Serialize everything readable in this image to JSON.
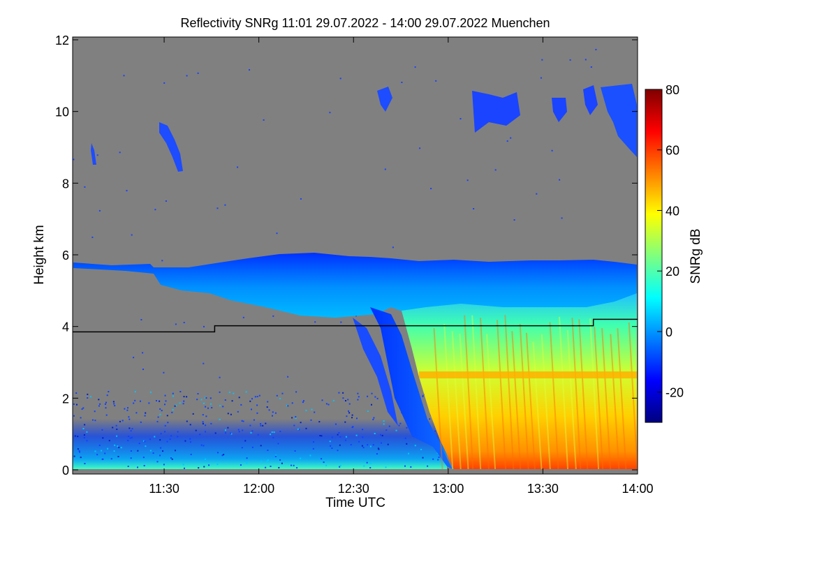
{
  "chart_data": {
    "type": "heatmap",
    "title": "Reflectivity SNRg   11:01 29.07.2022 - 14:00 29.07.2022 Muenchen",
    "xlabel": "Time UTC",
    "ylabel": "Height km",
    "x_ticks": [
      "11:30",
      "12:00",
      "12:30",
      "13:00",
      "13:30",
      "14:00"
    ],
    "y_ticks": [
      "0",
      "2",
      "4",
      "6",
      "8",
      "10",
      "12"
    ],
    "x_start": "11:01",
    "x_end": "14:00",
    "ylim": [
      0,
      12
    ],
    "colorbar": {
      "label": "SNRg dB",
      "ticks": [
        "80",
        "60",
        "40",
        "20",
        "0",
        "-20"
      ],
      "range": [
        -30,
        80
      ],
      "colormap": [
        "#00007f",
        "#0000ff",
        "#007fff",
        "#00ffff",
        "#7fff7f",
        "#ffff00",
        "#ff7f00",
        "#ff0000",
        "#7f0000"
      ]
    },
    "background_color": "#808080",
    "overlay_line": {
      "color": "#000000",
      "points": [
        {
          "time": "11:01",
          "height_km": 3.85
        },
        {
          "time": "11:46",
          "height_km": 3.85
        },
        {
          "time": "11:46",
          "height_km": 4.02
        },
        {
          "time": "13:46",
          "height_km": 4.02
        },
        {
          "time": "13:46",
          "height_km": 4.2
        },
        {
          "time": "14:00",
          "height_km": 4.2
        }
      ]
    }
  }
}
